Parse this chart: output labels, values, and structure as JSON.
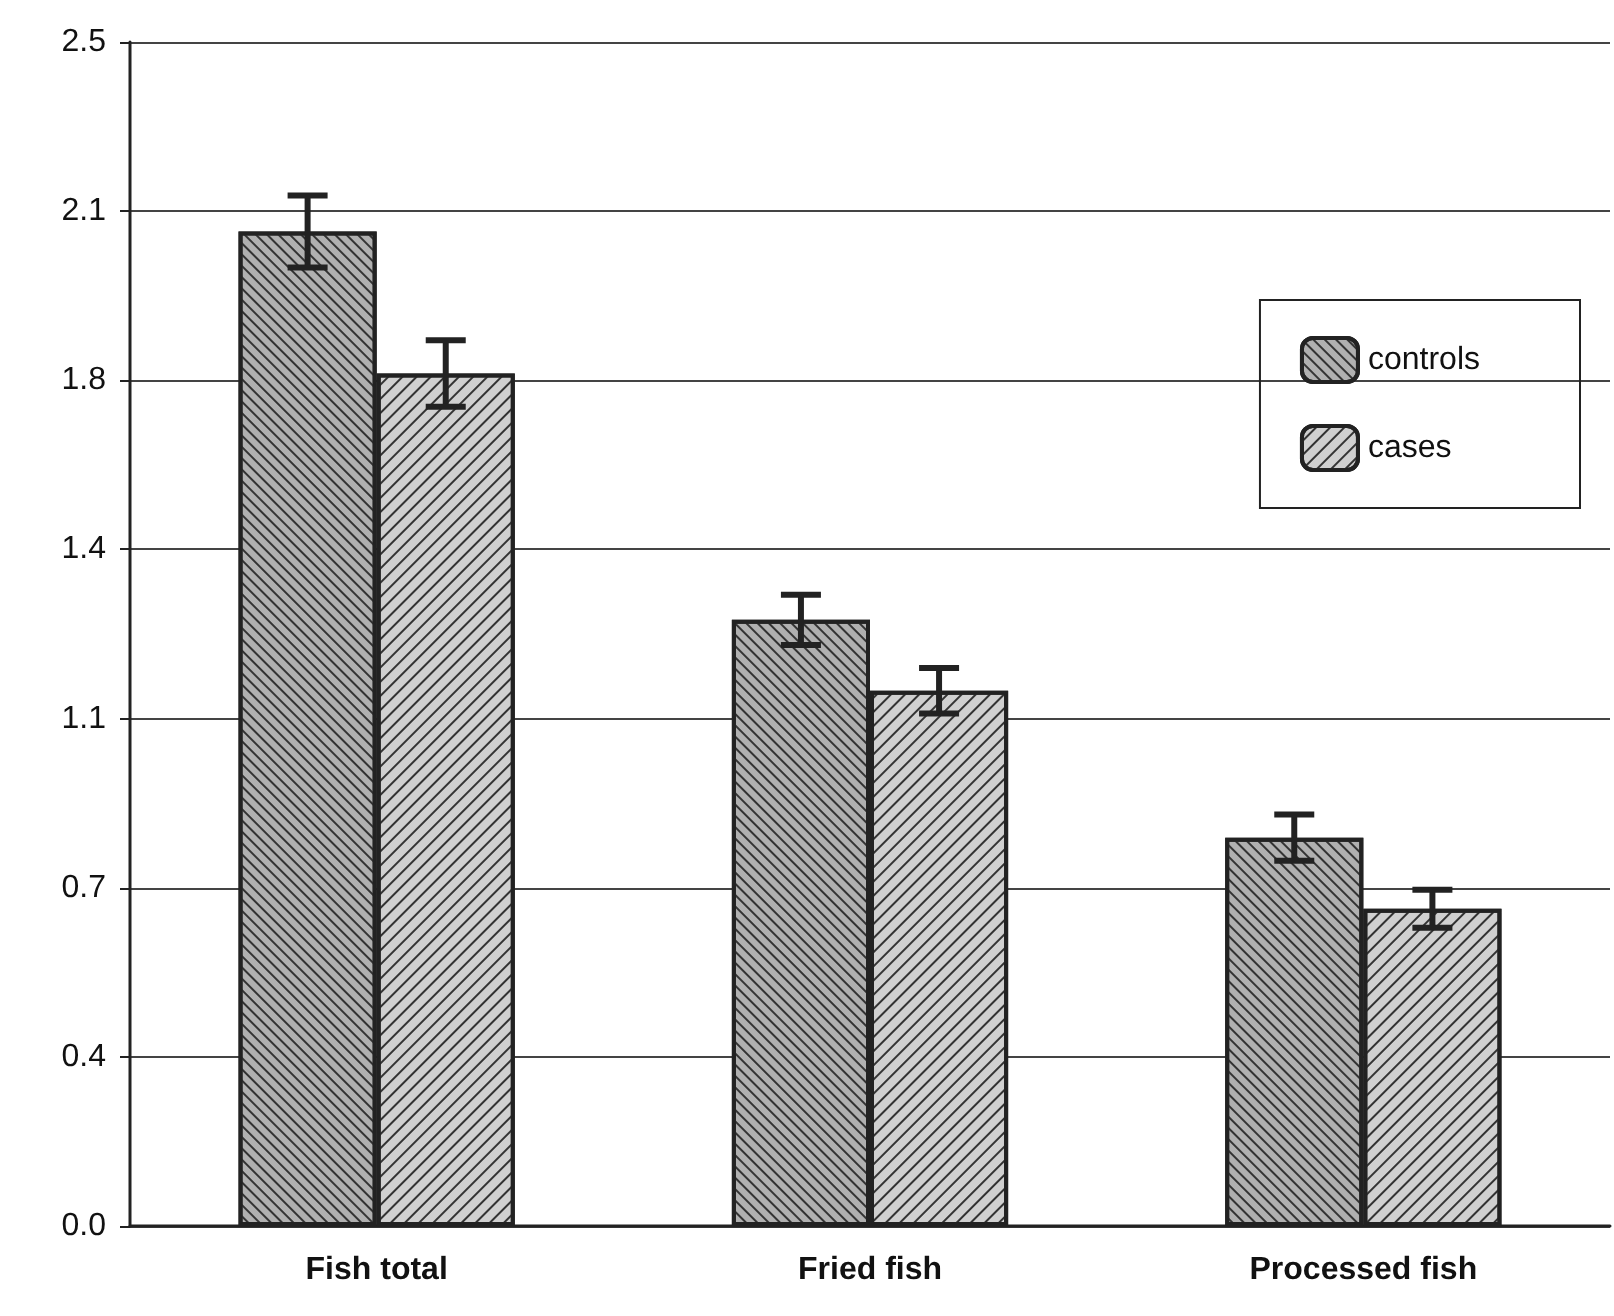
{
  "chart_data": {
    "type": "bar",
    "categories": [
      "Fish total",
      "Fried fish",
      "Processed fish"
    ],
    "series": [
      {
        "name": "controls",
        "color": "#b0b0b0",
        "values": [
          2.1,
          1.28,
          0.82
        ],
        "errors": [
          0.076,
          0.053,
          0.049
        ]
      },
      {
        "name": "cases",
        "color": "#d0d0d0",
        "values": [
          1.8,
          1.13,
          0.67
        ],
        "errors": [
          0.07,
          0.048,
          0.04
        ]
      }
    ],
    "ylim": [
      0,
      2.5
    ],
    "yticks": [
      {
        "value": 0,
        "label": "0.0"
      },
      {
        "value": 0.357,
        "label": "0.4"
      },
      {
        "value": 0.714,
        "label": "0.7"
      },
      {
        "value": 1.071,
        "label": "1.1"
      },
      {
        "value": 1.429,
        "label": "1.4"
      },
      {
        "value": 1.786,
        "label": "1.8"
      },
      {
        "value": 2.143,
        "label": "2.1"
      },
      {
        "value": 2.5,
        "label": "2.5"
      }
    ],
    "grid": "y",
    "legend": "top right"
  }
}
